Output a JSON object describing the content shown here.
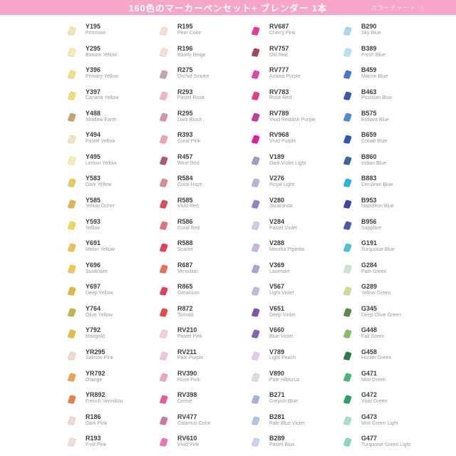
{
  "header": {
    "title": "160色のマーカーペンセット+ ブレンダー 1本",
    "right_label": "カラーチャート ①",
    "bg_color": "#F7A6C9"
  },
  "swatches": {
    "columns": [
      [
        {
          "code": "Y195",
          "name": "Primrose",
          "color": "#F3E5AE"
        },
        {
          "code": "Y295",
          "name": "Barium Yellow",
          "color": "#F4E9B0"
        },
        {
          "code": "Y396",
          "name": "Primary Yellow",
          "color": "#F6DE7D"
        },
        {
          "code": "Y397",
          "name": "Canaria Yellow",
          "color": "#F4DC6A"
        },
        {
          "code": "Y488",
          "name": "Shallow Earth",
          "color": "#C8A269"
        },
        {
          "code": "Y494",
          "name": "Pastel Yellow",
          "color": "#F1E4B9"
        },
        {
          "code": "Y495",
          "name": "Lemon Yellow",
          "color": "#F6EFAE"
        },
        {
          "code": "Y583",
          "name": "Dark Yellow",
          "color": "#E9CC51"
        },
        {
          "code": "Y585",
          "name": "Yellow Ocher",
          "color": "#E4B54E"
        },
        {
          "code": "Y593",
          "name": "Yellow",
          "color": "#F2D84F"
        },
        {
          "code": "Y691",
          "name": "Melon Yellow",
          "color": "#EFC153"
        },
        {
          "code": "Y696",
          "name": "Sunflower",
          "color": "#EEC94C"
        },
        {
          "code": "Y697",
          "name": "Deep Yellow",
          "color": "#E6B63F"
        },
        {
          "code": "Y764",
          "name": "Olive Yellow",
          "color": "#C3B545"
        },
        {
          "code": "Y792",
          "name": "Marigold",
          "color": "#EDBA45"
        },
        {
          "code": "YR295",
          "name": "Salmon Pink",
          "color": "#F6D9C3"
        },
        {
          "code": "YR792",
          "name": "Orange",
          "color": "#F2A24E"
        },
        {
          "code": "YR892",
          "name": "French Vermilion",
          "color": "#EE7B3F"
        },
        {
          "code": "R186",
          "name": "Dark Pink",
          "color": "#F4D6D4"
        },
        {
          "code": "R193",
          "name": "Fruit Pink",
          "color": "#F6D9DA"
        }
      ],
      [
        {
          "code": "R195",
          "name": "Pear Color",
          "color": "#F6DCD2"
        },
        {
          "code": "R196",
          "name": "Barely Beige",
          "color": "#F4DFD9"
        },
        {
          "code": "R275",
          "name": "Orchid Smoke",
          "color": "#C99FB4"
        },
        {
          "code": "R293",
          "name": "Pastel Rose",
          "color": "#F0B4C6"
        },
        {
          "code": "R295",
          "name": "Dark Blush",
          "color": "#D493A7"
        },
        {
          "code": "R393",
          "name": "Coral Pink",
          "color": "#F0A3AE"
        },
        {
          "code": "R457",
          "name": "Wine Red",
          "color": "#AE5A72"
        },
        {
          "code": "R584",
          "name": "Coral Haze",
          "color": "#E08794"
        },
        {
          "code": "R585",
          "name": "Vivid Red",
          "color": "#E04A5A"
        },
        {
          "code": "R586",
          "name": "Coral Red",
          "color": "#E8707E"
        },
        {
          "code": "R588",
          "name": "Scarlet",
          "color": "#E63E4E"
        },
        {
          "code": "R687",
          "name": "Vermilion",
          "color": "#EE6B55"
        },
        {
          "code": "R865",
          "name": "Geranium",
          "color": "#E63E5C"
        },
        {
          "code": "R872",
          "name": "Tomato",
          "color": "#E84A48"
        },
        {
          "code": "RV210",
          "name": "Pastel Pink",
          "color": "#F6CDDE"
        },
        {
          "code": "RV211",
          "name": "Pale Purple",
          "color": "#F0C5DC"
        },
        {
          "code": "RV390",
          "name": "Rose Pink",
          "color": "#F2A2C6"
        },
        {
          "code": "RV398",
          "name": "Cerise",
          "color": "#E85AA2"
        },
        {
          "code": "RV477",
          "name": "Calamus Color",
          "color": "#C878A8"
        },
        {
          "code": "RV610",
          "name": "Vivid Pink",
          "color": "#EE74B6"
        }
      ],
      [
        {
          "code": "RV687",
          "name": "Cherry Pink",
          "color": "#E8399A"
        },
        {
          "code": "RV757",
          "name": "Old Red",
          "color": "#A04A5E"
        },
        {
          "code": "RV777",
          "name": "Azalea Purple",
          "color": "#DE4AA8"
        },
        {
          "code": "RV783",
          "name": "Rose Red",
          "color": "#E83A86"
        },
        {
          "code": "RV789",
          "name": "Vivid Reddish Purple",
          "color": "#C438A2"
        },
        {
          "code": "RV968",
          "name": "Vivid Purple",
          "color": "#E41AA8"
        },
        {
          "code": "V189",
          "name": "Dark Violet Light",
          "color": "#A89AC6"
        },
        {
          "code": "V276",
          "name": "Royal Light",
          "color": "#BFB0D8"
        },
        {
          "code": "V280",
          "name": "Jacaranda",
          "color": "#9880C8"
        },
        {
          "code": "V284",
          "name": "Pastel Violet",
          "color": "#D6C8E8"
        },
        {
          "code": "V288",
          "name": "Mentha Piperita",
          "color": "#C6B6E0"
        },
        {
          "code": "V369",
          "name": "Lavender",
          "color": "#B49ED6"
        },
        {
          "code": "V567",
          "name": "Light Violet",
          "color": "#C4B4DE"
        },
        {
          "code": "V651",
          "name": "Deep Violet",
          "color": "#7A58A8"
        },
        {
          "code": "V660",
          "name": "Blue Violet",
          "color": "#8265B4"
        },
        {
          "code": "V789",
          "name": "Light Peach",
          "color": "#E0CCE6"
        },
        {
          "code": "V890",
          "name": "Pale Hibiscus",
          "color": "#E6D6EC"
        },
        {
          "code": "B271",
          "name": "Greyish Blue",
          "color": "#A4B2D4"
        },
        {
          "code": "B281",
          "name": "Pale Blue Violet",
          "color": "#B4C4E6"
        },
        {
          "code": "B289",
          "name": "Pastel Blue",
          "color": "#C4D6EE"
        }
      ],
      [
        {
          "code": "B290",
          "name": "Sky Blue",
          "color": "#A6D8F2"
        },
        {
          "code": "B389",
          "name": "Fresh Blue",
          "color": "#B6E2F4"
        },
        {
          "code": "B459",
          "name": "Marine Blue",
          "color": "#4878C8"
        },
        {
          "code": "B463",
          "name": "Prussian Blue",
          "color": "#3A5AA8"
        },
        {
          "code": "B575",
          "name": "Brilliant Blue",
          "color": "#4A8AD8"
        },
        {
          "code": "B659",
          "name": "Cobalt Blue",
          "color": "#2A5AB8"
        },
        {
          "code": "B860",
          "name": "Indian Blue",
          "color": "#3A689E"
        },
        {
          "code": "B883",
          "name": "Cerulean Blue",
          "color": "#26B6E6"
        },
        {
          "code": "B953",
          "name": "Napoleon Blue",
          "color": "#3A48A0"
        },
        {
          "code": "B956",
          "name": "Sapphire",
          "color": "#4A5AAE"
        },
        {
          "code": "G191",
          "name": "Turquoise Blue",
          "color": "#46C6D6"
        },
        {
          "code": "G284",
          "name": "Pale Green",
          "color": "#C6E8D2"
        },
        {
          "code": "G289",
          "name": "Yellow Green",
          "color": "#C6DE96"
        },
        {
          "code": "G345",
          "name": "Deep Olive Green",
          "color": "#5A8A4A"
        },
        {
          "code": "G448",
          "name": "Fall Green",
          "color": "#84BE6A"
        },
        {
          "code": "G458",
          "name": "Hunter Green",
          "color": "#2A7A4A"
        },
        {
          "code": "G471",
          "name": "Mint Green",
          "color": "#4AB87A"
        },
        {
          "code": "G472",
          "name": "Vivid Green",
          "color": "#2AA06A"
        },
        {
          "code": "G473",
          "name": "Mint Green Light",
          "color": "#A6E0C6"
        },
        {
          "code": "G477",
          "name": "Turquoise Green Light",
          "color": "#86D8C6"
        }
      ]
    ]
  }
}
